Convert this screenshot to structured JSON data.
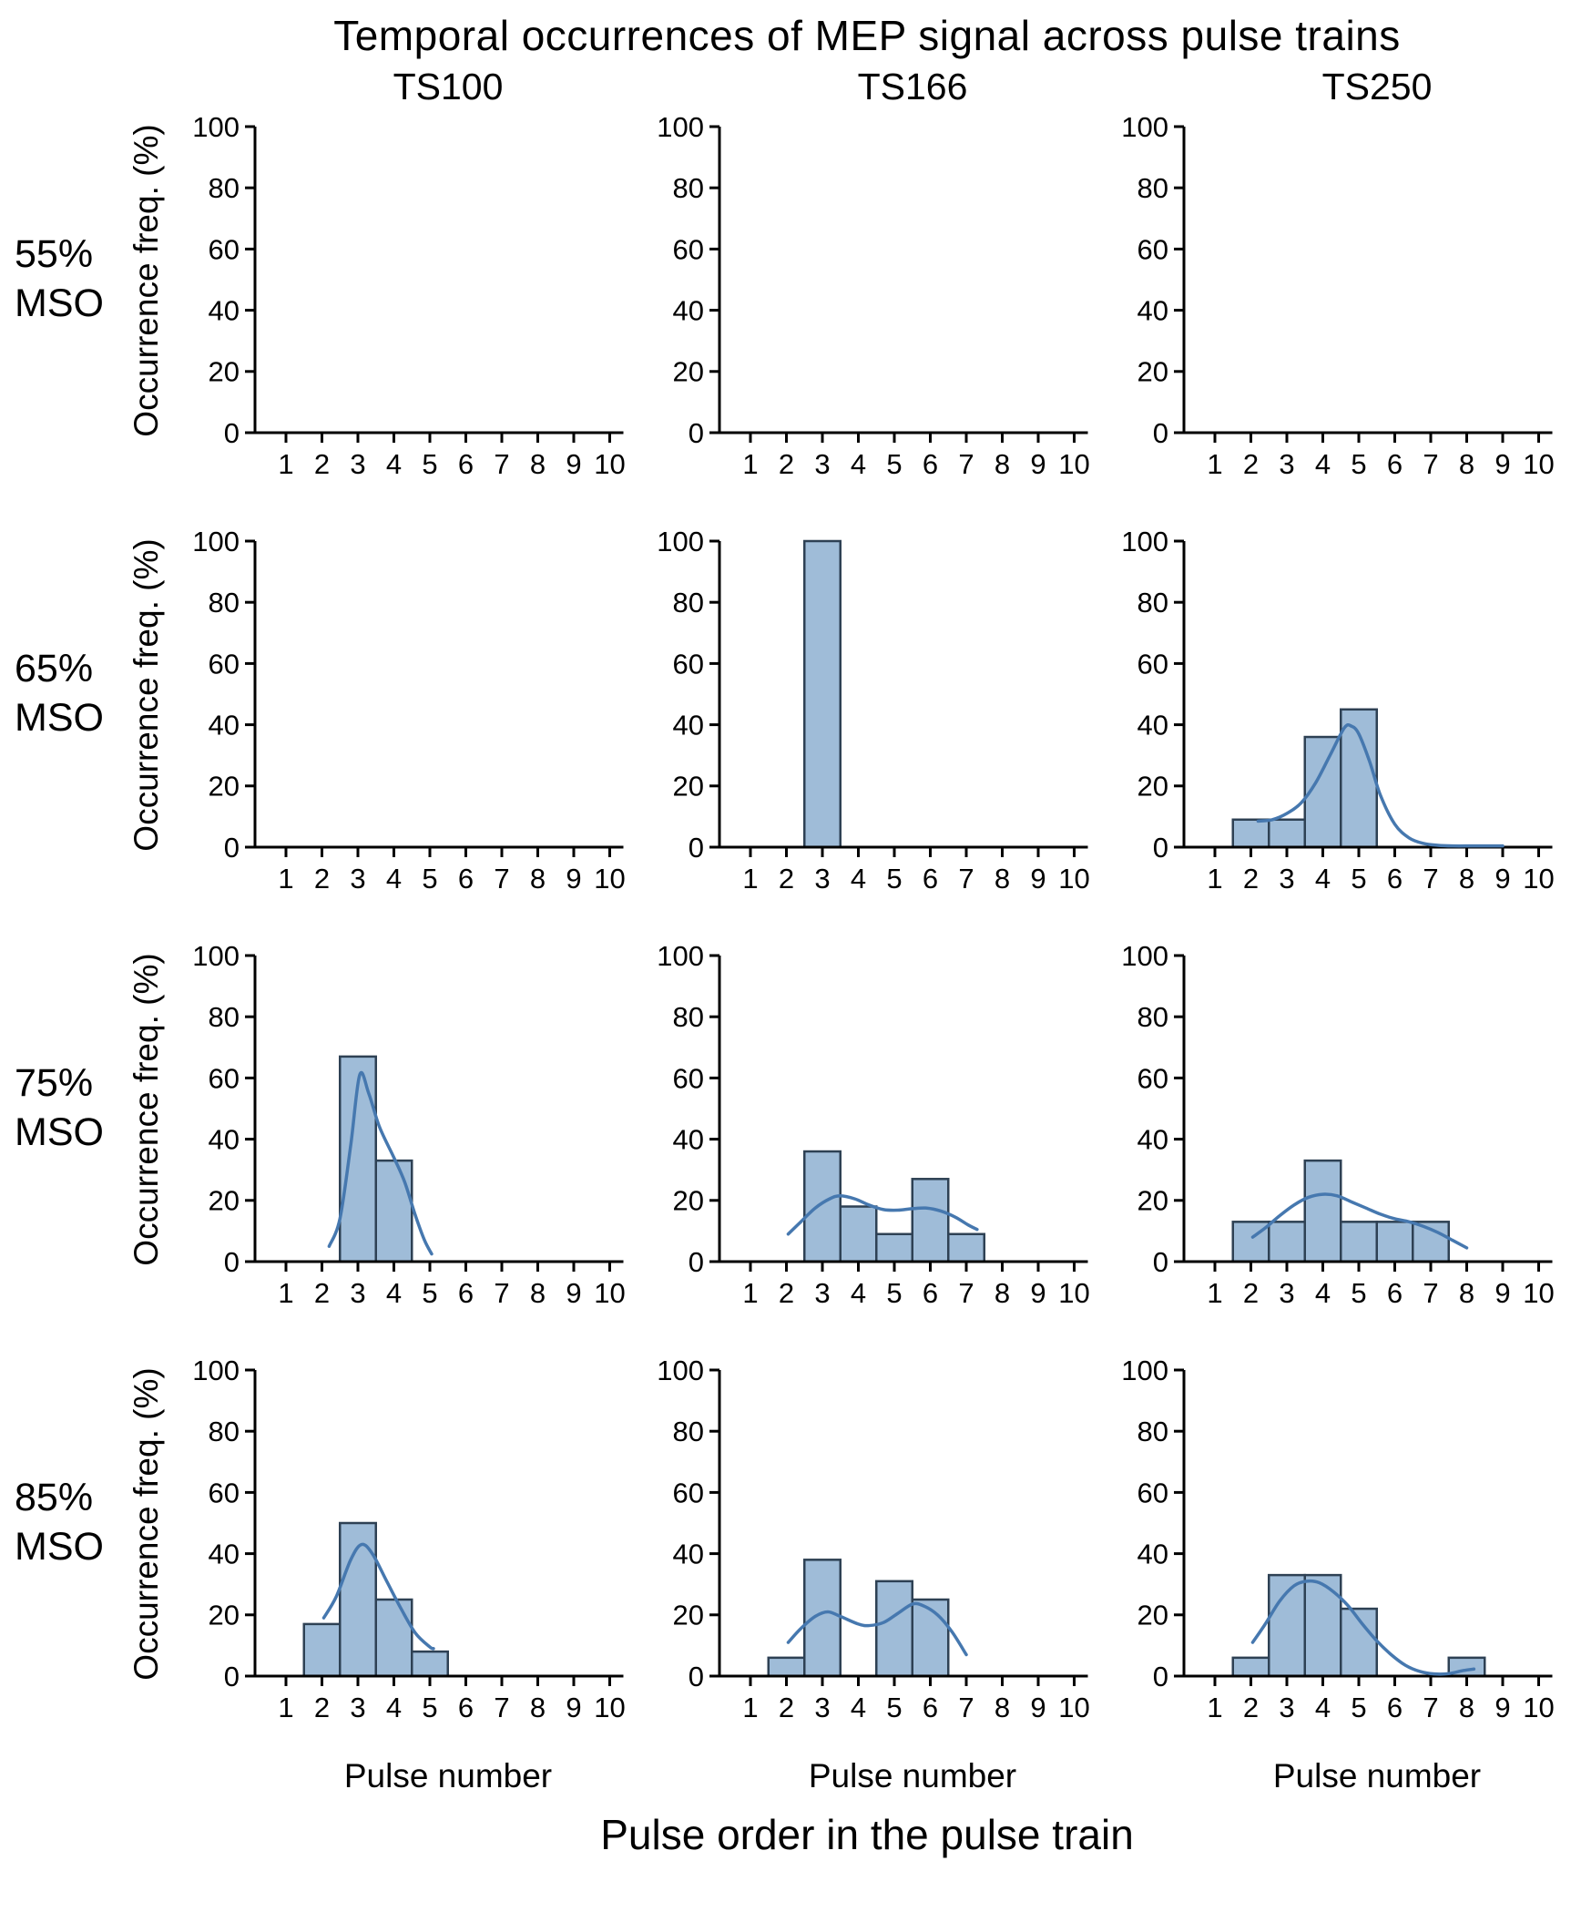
{
  "title": "Temporal occurrences of MEP signal across pulse trains",
  "columns": [
    "TS100",
    "TS166",
    "TS250"
  ],
  "rows": [
    "55% MSO",
    "65% MSO",
    "75% MSO",
    "85% MSO"
  ],
  "axis": {
    "ylabel": "Occurrence freq. (%)",
    "xlabel": "Pulse number",
    "bottom_label": "Pulse order in the pulse train",
    "xticks": [
      1,
      2,
      3,
      4,
      5,
      6,
      7,
      8,
      9,
      10
    ],
    "yticks": [
      0,
      20,
      40,
      60,
      80,
      100
    ],
    "ylim": [
      0,
      100
    ]
  },
  "colors": {
    "bar_fill": "#9fbcd8",
    "bar_stroke": "#2e4154",
    "curve": "#4678af",
    "axis": "#000000"
  },
  "chart_data": [
    {
      "type": "bar",
      "row": "55% MSO",
      "col": "TS100",
      "categories": [
        1,
        2,
        3,
        4,
        5,
        6,
        7,
        8,
        9,
        10
      ],
      "values": [
        0,
        0,
        0,
        0,
        0,
        0,
        0,
        0,
        0,
        0
      ],
      "curve": []
    },
    {
      "type": "bar",
      "row": "55% MSO",
      "col": "TS166",
      "categories": [
        1,
        2,
        3,
        4,
        5,
        6,
        7,
        8,
        9,
        10
      ],
      "values": [
        0,
        0,
        0,
        0,
        0,
        0,
        0,
        0,
        0,
        0
      ],
      "curve": []
    },
    {
      "type": "bar",
      "row": "55% MSO",
      "col": "TS250",
      "categories": [
        1,
        2,
        3,
        4,
        5,
        6,
        7,
        8,
        9,
        10
      ],
      "values": [
        0,
        0,
        0,
        0,
        0,
        0,
        0,
        0,
        0,
        0
      ],
      "curve": []
    },
    {
      "type": "bar",
      "row": "65% MSO",
      "col": "TS100",
      "categories": [
        1,
        2,
        3,
        4,
        5,
        6,
        7,
        8,
        9,
        10
      ],
      "values": [
        0,
        0,
        0,
        0,
        0,
        0,
        0,
        0,
        0,
        0
      ],
      "curve": []
    },
    {
      "type": "bar",
      "row": "65% MSO",
      "col": "TS166",
      "categories": [
        1,
        2,
        3,
        4,
        5,
        6,
        7,
        8,
        9,
        10
      ],
      "values": [
        0,
        0,
        100,
        0,
        0,
        0,
        0,
        0,
        0,
        0
      ],
      "curve": []
    },
    {
      "type": "bar",
      "row": "65% MSO",
      "col": "TS250",
      "categories": [
        1,
        2,
        3,
        4,
        5,
        6,
        7,
        8,
        9,
        10
      ],
      "values": [
        0,
        9,
        9,
        36,
        45,
        0,
        0,
        0,
        0,
        0
      ],
      "curve": [
        [
          2.2,
          8.5
        ],
        [
          2.6,
          9
        ],
        [
          3,
          11
        ],
        [
          3.4,
          14.5
        ],
        [
          3.8,
          21
        ],
        [
          4.2,
          30
        ],
        [
          4.6,
          39
        ],
        [
          4.8,
          39.5
        ],
        [
          5,
          37
        ],
        [
          5.3,
          28
        ],
        [
          5.6,
          17
        ],
        [
          6,
          7.5
        ],
        [
          6.4,
          3
        ],
        [
          6.8,
          1.2
        ],
        [
          7.2,
          0.6
        ],
        [
          7.6,
          0.4
        ],
        [
          8.2,
          0.4
        ],
        [
          9,
          0.4
        ]
      ]
    },
    {
      "type": "bar",
      "row": "75% MSO",
      "col": "TS100",
      "categories": [
        1,
        2,
        3,
        4,
        5,
        6,
        7,
        8,
        9,
        10
      ],
      "values": [
        0,
        0,
        67,
        33,
        0,
        0,
        0,
        0,
        0,
        0
      ],
      "curve": [
        [
          2.2,
          5
        ],
        [
          2.5,
          14
        ],
        [
          2.8,
          38
        ],
        [
          3.05,
          61
        ],
        [
          3.3,
          55
        ],
        [
          3.6,
          44
        ],
        [
          4,
          34
        ],
        [
          4.3,
          26
        ],
        [
          4.6,
          15
        ],
        [
          4.85,
          7
        ],
        [
          5.05,
          2.5
        ]
      ]
    },
    {
      "type": "bar",
      "row": "75% MSO",
      "col": "TS166",
      "categories": [
        1,
        2,
        3,
        4,
        5,
        6,
        7,
        8,
        9,
        10
      ],
      "values": [
        0,
        0,
        36,
        18,
        9,
        27,
        9,
        0,
        0,
        0
      ],
      "curve": [
        [
          2.05,
          9
        ],
        [
          2.4,
          13
        ],
        [
          2.8,
          17.5
        ],
        [
          3.2,
          20.5
        ],
        [
          3.5,
          21.5
        ],
        [
          3.9,
          20.5
        ],
        [
          4.3,
          18.5
        ],
        [
          4.7,
          17
        ],
        [
          5.1,
          16.8
        ],
        [
          5.5,
          17.3
        ],
        [
          5.9,
          17.5
        ],
        [
          6.3,
          16.5
        ],
        [
          6.7,
          14.5
        ],
        [
          7.05,
          12
        ],
        [
          7.3,
          10.5
        ]
      ]
    },
    {
      "type": "bar",
      "row": "75% MSO",
      "col": "TS250",
      "categories": [
        1,
        2,
        3,
        4,
        5,
        6,
        7,
        8,
        9,
        10
      ],
      "values": [
        0,
        13,
        13,
        33,
        13,
        13,
        13,
        0,
        0,
        0
      ],
      "curve": [
        [
          2.05,
          8
        ],
        [
          2.4,
          11
        ],
        [
          2.8,
          15
        ],
        [
          3.2,
          18.5
        ],
        [
          3.6,
          21
        ],
        [
          4,
          22
        ],
        [
          4.4,
          21.5
        ],
        [
          4.8,
          19.5
        ],
        [
          5.2,
          17.5
        ],
        [
          5.6,
          15.5
        ],
        [
          6,
          14
        ],
        [
          6.4,
          13
        ],
        [
          6.8,
          11.5
        ],
        [
          7.2,
          9.5
        ],
        [
          7.6,
          7
        ],
        [
          8,
          4.5
        ]
      ]
    },
    {
      "type": "bar",
      "row": "85% MSO",
      "col": "TS100",
      "categories": [
        1,
        2,
        3,
        4,
        5,
        6,
        7,
        8,
        9,
        10
      ],
      "values": [
        0,
        17,
        50,
        25,
        8,
        0,
        0,
        0,
        0,
        0
      ],
      "curve": [
        [
          2.05,
          19
        ],
        [
          2.4,
          26
        ],
        [
          2.8,
          38
        ],
        [
          3.1,
          43
        ],
        [
          3.4,
          40
        ],
        [
          3.8,
          31
        ],
        [
          4.2,
          22
        ],
        [
          4.6,
          14
        ],
        [
          5,
          9.5
        ],
        [
          5.1,
          9
        ]
      ]
    },
    {
      "type": "bar",
      "row": "85% MSO",
      "col": "TS166",
      "categories": [
        1,
        2,
        3,
        4,
        5,
        6,
        7,
        8,
        9,
        10
      ],
      "values": [
        0,
        6,
        38,
        0,
        31,
        25,
        0,
        0,
        0,
        0
      ],
      "curve": [
        [
          2.05,
          11
        ],
        [
          2.4,
          15.5
        ],
        [
          2.8,
          19.5
        ],
        [
          3.15,
          21
        ],
        [
          3.5,
          19.5
        ],
        [
          4,
          17
        ],
        [
          4.3,
          16.5
        ],
        [
          4.7,
          17.5
        ],
        [
          5.1,
          20.5
        ],
        [
          5.5,
          23.5
        ],
        [
          5.8,
          23
        ],
        [
          6.2,
          20
        ],
        [
          6.6,
          14.5
        ],
        [
          7,
          7
        ]
      ]
    },
    {
      "type": "bar",
      "row": "85% MSO",
      "col": "TS250",
      "categories": [
        1,
        2,
        3,
        4,
        5,
        6,
        7,
        8,
        9,
        10
      ],
      "values": [
        0,
        6,
        33,
        33,
        22,
        0,
        0,
        6,
        0,
        0
      ],
      "curve": [
        [
          2.05,
          11
        ],
        [
          2.4,
          17
        ],
        [
          2.8,
          24.5
        ],
        [
          3.2,
          29.5
        ],
        [
          3.55,
          31
        ],
        [
          3.9,
          30.5
        ],
        [
          4.3,
          27.5
        ],
        [
          4.7,
          23
        ],
        [
          5.1,
          17
        ],
        [
          5.5,
          11.5
        ],
        [
          5.9,
          7
        ],
        [
          6.3,
          3.5
        ],
        [
          6.7,
          1.5
        ],
        [
          7.1,
          0.7
        ],
        [
          7.5,
          0.8
        ],
        [
          7.9,
          1.8
        ],
        [
          8.2,
          2.3
        ]
      ]
    }
  ]
}
